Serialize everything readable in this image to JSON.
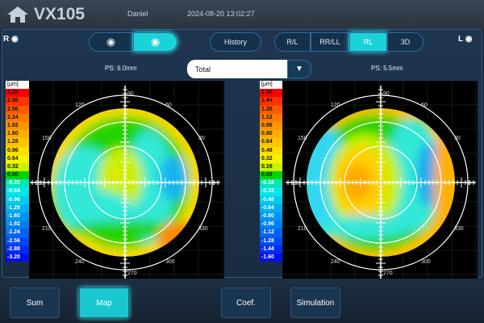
{
  "header": {
    "app_title": "VX105",
    "user": "Daniel",
    "datetime": "2024-08-20 13:02:27"
  },
  "toolbar": {
    "right_eye": "R",
    "left_eye": "L",
    "history": "History",
    "views": [
      "R/L",
      "RR/LL",
      "RL",
      "3D"
    ],
    "active_view": "RL"
  },
  "maps": {
    "dropdown_value": "Total",
    "left": {
      "ps": "PS: 6.0mm",
      "unit": "[μm]",
      "scale": [
        "3.20",
        "2.88",
        "2.56",
        "2.24",
        "1.92",
        "1.60",
        "1.28",
        "0.96",
        "0.64",
        "0.32",
        "0.00",
        "-0.32",
        "-0.64",
        "-0.96",
        "-1.28",
        "-1.60",
        "-1.92",
        "-2.24",
        "-2.56",
        "-2.88",
        "-3.20"
      ]
    },
    "right": {
      "ps": "PS: 5.5mm",
      "unit": "[μm]",
      "scale": [
        "1.60",
        "1.44",
        "1.28",
        "1.12",
        "0.96",
        "0.80",
        "0.64",
        "0.48",
        "0.32",
        "0.16",
        "0.00",
        "-0.16",
        "-0.32",
        "-0.48",
        "-0.64",
        "-0.80",
        "-0.96",
        "-1.12",
        "-1.28",
        "-1.44",
        "-1.60"
      ]
    },
    "angles": [
      "0",
      "30",
      "60",
      "90",
      "120",
      "150",
      "180",
      "210",
      "240",
      "270",
      "300",
      "330"
    ]
  },
  "scale_colors": [
    "#ff0000",
    "#ff3300",
    "#ff5a00",
    "#ff7a00",
    "#ff9400",
    "#ffad00",
    "#ffc400",
    "#ffdf00",
    "#f5f500",
    "#c8f000",
    "#00d400",
    "#00e6b4",
    "#00e6e6",
    "#00ccf0",
    "#00b0f0",
    "#0096f0",
    "#0080f0",
    "#0064f0",
    "#0048f0",
    "#002cf0",
    "#0010e6"
  ],
  "bottom": {
    "buttons": [
      "Sum",
      "Map",
      "Coef.",
      "Simulation"
    ],
    "active": "Map"
  }
}
